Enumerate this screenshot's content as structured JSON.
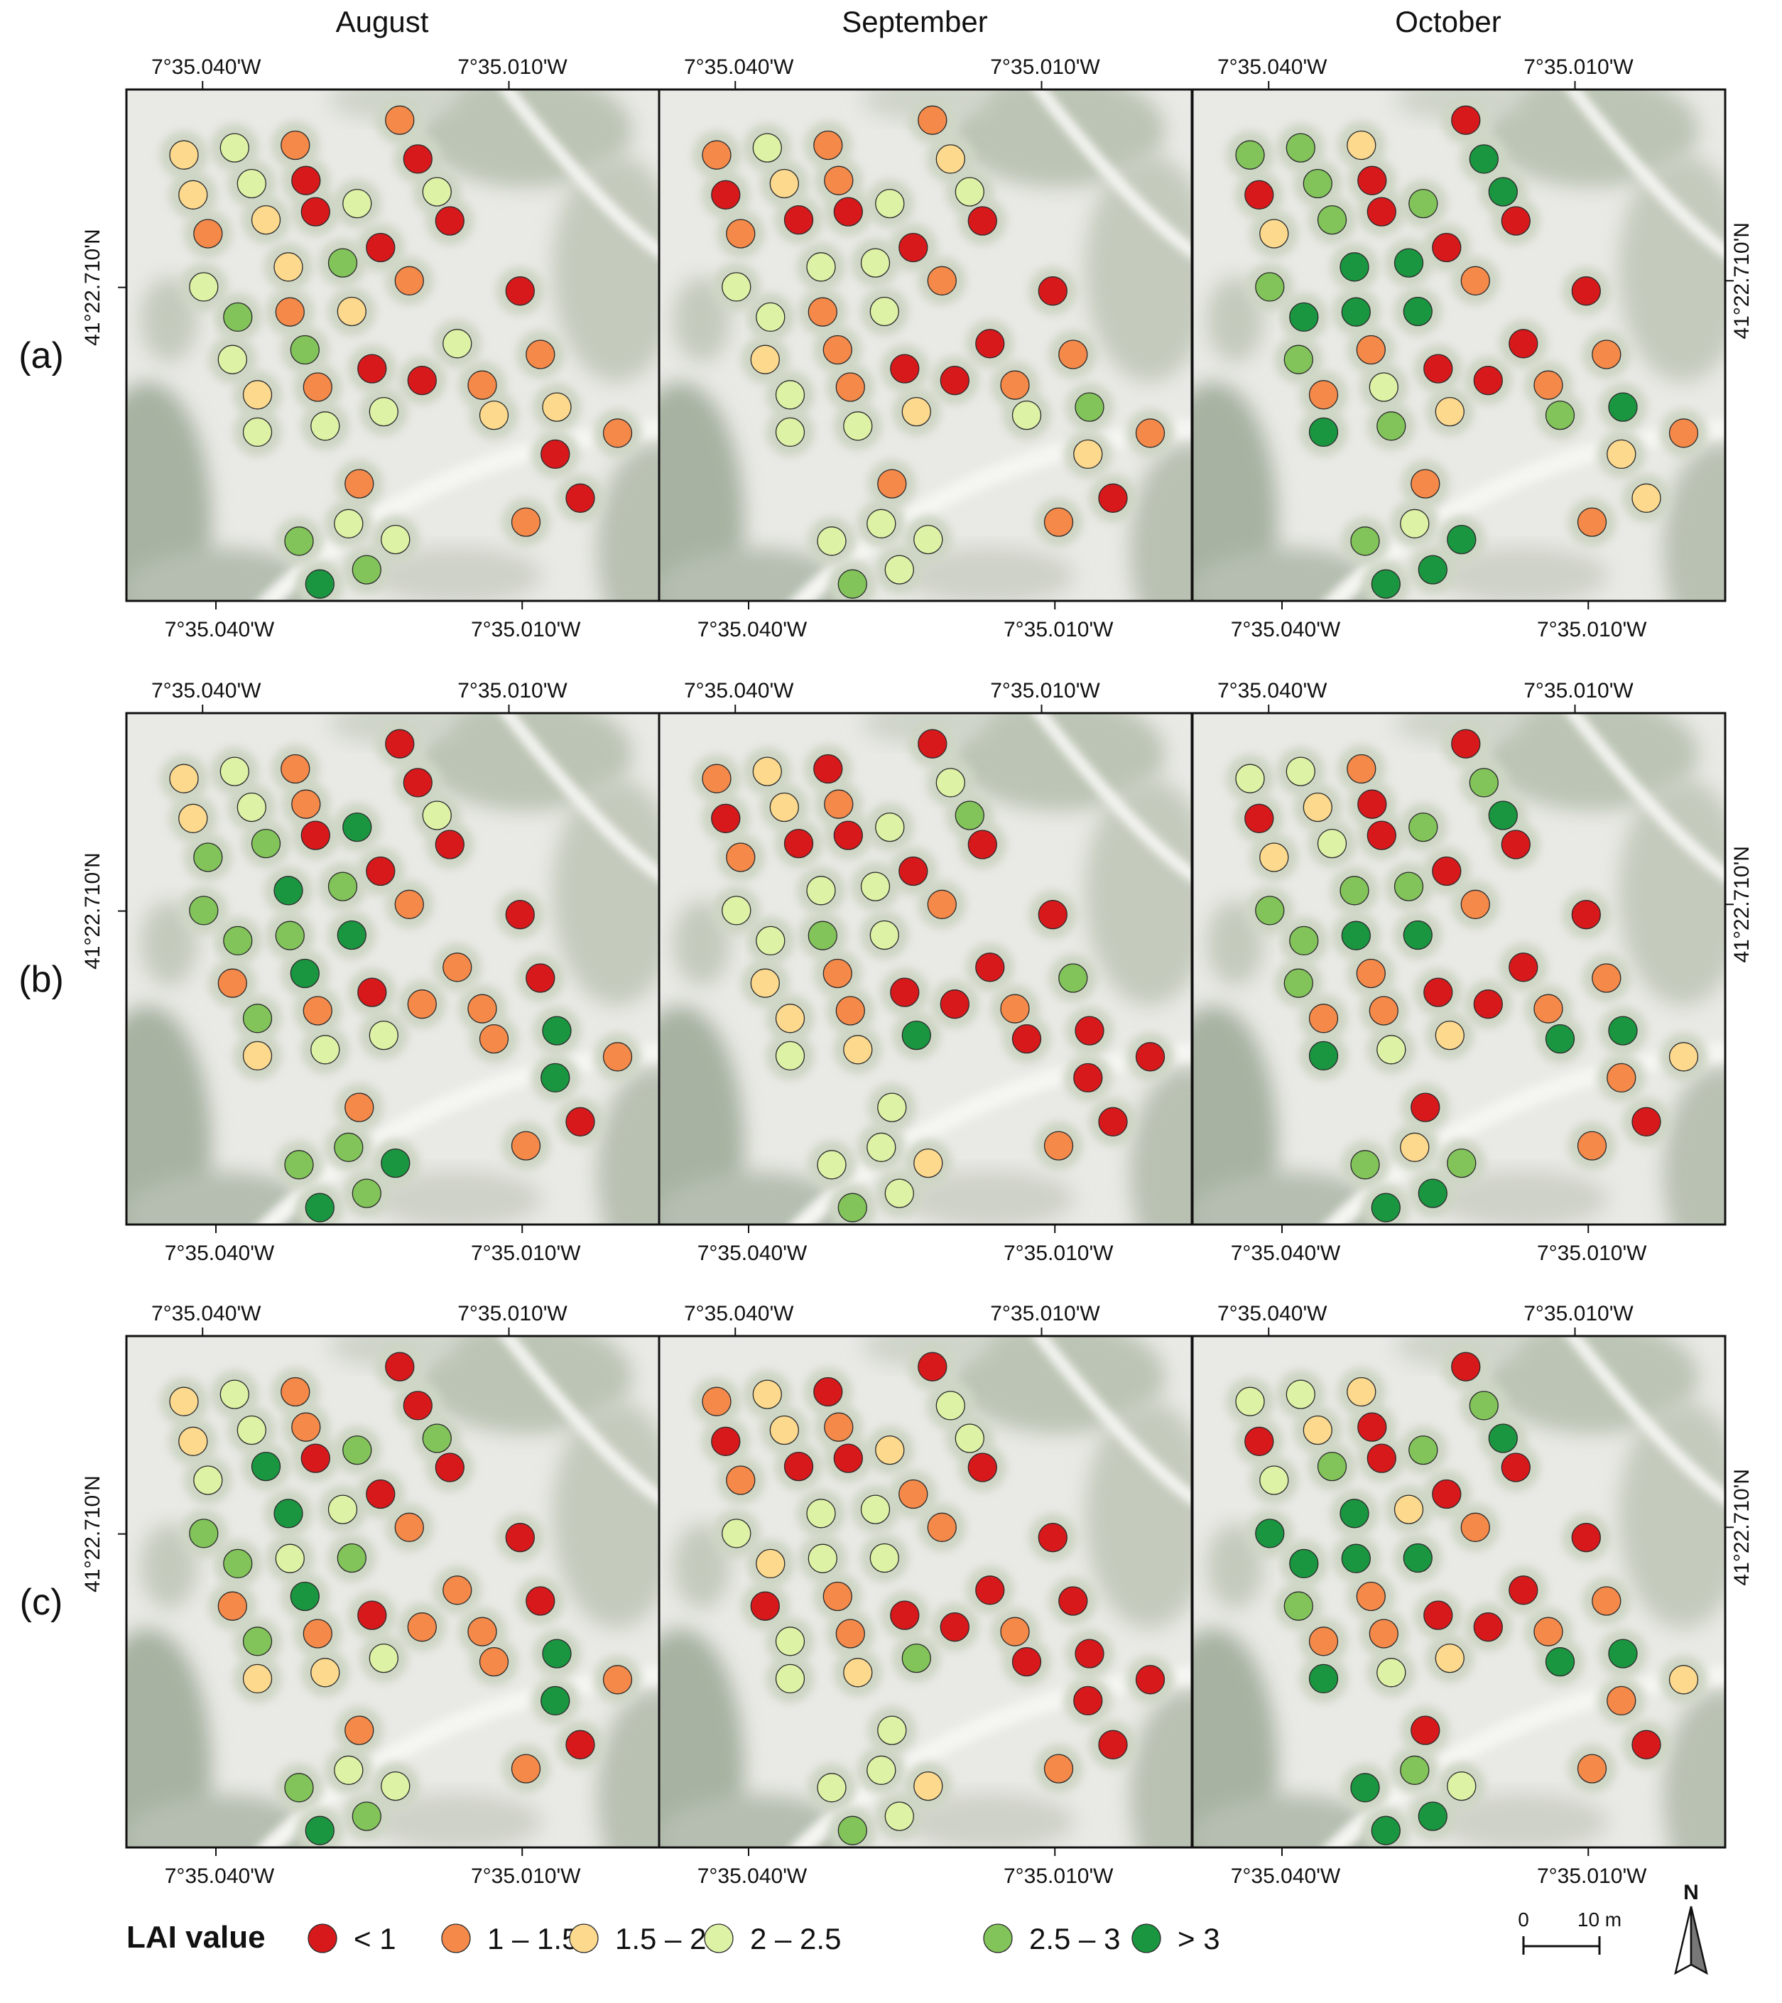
{
  "columns": [
    "August",
    "September",
    "October"
  ],
  "rows": [
    "(a)",
    "(b)",
    "(c)"
  ],
  "longitude_labels": [
    "7°35.040'W",
    "7°35.010'W"
  ],
  "latitude_label": "41°22.710'N",
  "legend": {
    "title": "LAI value",
    "classes": [
      {
        "label": "< 1",
        "color": "#d7191c"
      },
      {
        "label": "1 – 1.5",
        "color": "#f4894a"
      },
      {
        "label": "1.5 – 2",
        "color": "#fdd98e"
      },
      {
        "label": "2 – 2.5",
        "color": "#def2a6"
      },
      {
        "label": "2.5 – 3",
        "color": "#82c45a"
      },
      {
        "label": "> 3",
        "color": "#1a9641"
      }
    ]
  },
  "scale_bar": {
    "zero": "0",
    "max": "10 m"
  },
  "north_arrow": {
    "label": "N"
  },
  "trees": {
    "a": {
      "August": [
        2,
        3,
        1,
        1,
        2,
        3,
        0,
        0,
        1,
        2,
        0,
        3,
        3,
        0,
        0,
        3,
        2,
        4,
        1,
        0,
        4,
        1,
        2,
        3,
        3,
        4,
        0,
        2,
        1,
        0,
        3,
        3,
        3,
        1,
        1,
        2,
        2,
        1,
        0,
        1,
        0,
        1,
        4,
        3,
        3,
        4,
        5
      ],
      "September": [
        1,
        3,
        1,
        1,
        0,
        2,
        1,
        2,
        1,
        0,
        0,
        3,
        3,
        0,
        0,
        3,
        3,
        3,
        1,
        0,
        3,
        1,
        3,
        0,
        2,
        1,
        0,
        3,
        1,
        0,
        3,
        3,
        2,
        1,
        1,
        3,
        4,
        1,
        2,
        1,
        0,
        1,
        3,
        3,
        3,
        3,
        4
      ],
      "October": [
        4,
        4,
        2,
        0,
        0,
        4,
        0,
        5,
        2,
        4,
        0,
        4,
        5,
        0,
        0,
        4,
        5,
        5,
        1,
        0,
        5,
        5,
        5,
        0,
        4,
        1,
        0,
        1,
        3,
        0,
        5,
        4,
        2,
        1,
        1,
        4,
        5,
        1,
        2,
        1,
        2,
        1,
        4,
        3,
        5,
        5,
        5
      ]
    },
    "b": {
      "August": [
        2,
        3,
        1,
        0,
        2,
        3,
        1,
        0,
        4,
        4,
        0,
        5,
        3,
        0,
        0,
        4,
        5,
        4,
        1,
        0,
        4,
        4,
        5,
        1,
        1,
        5,
        0,
        4,
        1,
        1,
        2,
        3,
        3,
        1,
        0,
        1,
        5,
        1,
        5,
        1,
        0,
        1,
        4,
        4,
        5,
        4,
        5
      ],
      "September": [
        1,
        2,
        0,
        0,
        0,
        2,
        1,
        3,
        1,
        0,
        0,
        3,
        4,
        0,
        0,
        3,
        3,
        3,
        1,
        0,
        3,
        4,
        3,
        0,
        2,
        1,
        0,
        2,
        1,
        0,
        3,
        2,
        5,
        1,
        4,
        0,
        0,
        0,
        0,
        3,
        0,
        1,
        3,
        3,
        2,
        3,
        4
      ],
      "October": [
        3,
        3,
        1,
        0,
        0,
        2,
        0,
        4,
        2,
        3,
        0,
        4,
        5,
        0,
        0,
        4,
        4,
        4,
        1,
        0,
        4,
        5,
        5,
        0,
        4,
        1,
        0,
        1,
        1,
        0,
        5,
        3,
        2,
        1,
        1,
        5,
        5,
        2,
        1,
        0,
        0,
        1,
        4,
        2,
        4,
        5,
        5
      ]
    },
    "c": {
      "August": [
        2,
        3,
        1,
        0,
        2,
        3,
        1,
        0,
        3,
        5,
        0,
        4,
        4,
        0,
        0,
        4,
        5,
        3,
        1,
        0,
        4,
        3,
        4,
        1,
        1,
        5,
        0,
        4,
        1,
        1,
        2,
        2,
        3,
        1,
        0,
        1,
        5,
        1,
        5,
        1,
        0,
        1,
        4,
        3,
        3,
        4,
        5
      ],
      "September": [
        1,
        2,
        0,
        0,
        0,
        2,
        1,
        3,
        1,
        0,
        0,
        2,
        3,
        1,
        0,
        3,
        3,
        3,
        1,
        0,
        2,
        3,
        3,
        0,
        0,
        1,
        0,
        3,
        1,
        0,
        3,
        2,
        4,
        1,
        0,
        0,
        0,
        0,
        0,
        3,
        0,
        1,
        3,
        3,
        2,
        3,
        4
      ],
      "October": [
        3,
        3,
        2,
        0,
        0,
        2,
        0,
        4,
        3,
        4,
        0,
        4,
        5,
        0,
        0,
        5,
        5,
        2,
        1,
        0,
        5,
        5,
        5,
        0,
        4,
        1,
        0,
        1,
        1,
        0,
        5,
        3,
        2,
        1,
        1,
        5,
        5,
        2,
        1,
        0,
        0,
        1,
        5,
        4,
        3,
        5,
        5
      ]
    }
  }
}
